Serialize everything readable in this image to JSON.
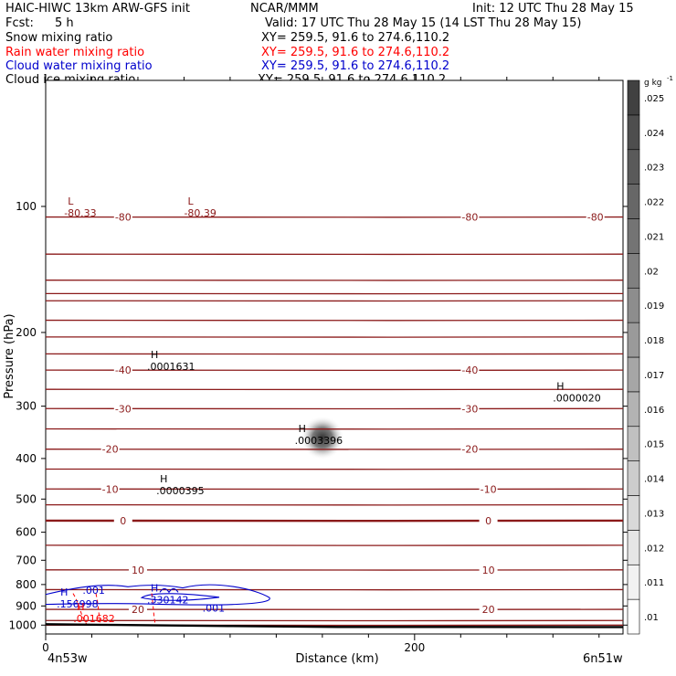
{
  "header": {
    "model_title": "HAIC-HIWC 13km ARW-GFS init",
    "center": "NCAR/MMM",
    "init": "Init: 12 UTC Thu 28 May 15",
    "fcst_label": "Fcst:",
    "fcst_value": "5 h",
    "valid": "Valid: 17 UTC Thu 28 May 15 (14 LST Thu 28 May 15)"
  },
  "fields": [
    {
      "label": "Snow mixing ratio",
      "xy": "XY= 259.5, 91.6 to 274.6,110.2",
      "color": "#000000"
    },
    {
      "label": "Rain water mixing ratio",
      "xy": "XY= 259.5, 91.6 to 274.6,110.2",
      "color": "#ff0000"
    },
    {
      "label": "Cloud water mixing ratio",
      "xy": "XY= 259.5, 91.6 to 274.6,110.2",
      "color": "#0000cc"
    },
    {
      "label": "Cloud ice mixing ratio",
      "xy": "XY= 259.5, 91.6 to 274.6,110.2",
      "color": "#000000"
    }
  ],
  "axes": {
    "ylabel": "Pressure (hPa)",
    "xlabel": "Distance (km)",
    "left_location": "4n53w",
    "right_location": "6n51w"
  },
  "colorbar": {
    "unit": "g kg",
    "unit_exp": "-1",
    "levels": [
      0.01,
      0.011,
      0.012,
      0.013,
      0.014,
      0.015,
      0.016,
      0.017,
      0.018,
      0.019,
      0.02,
      0.021,
      0.022,
      0.023,
      0.024,
      0.025
    ],
    "labels": [
      ".01",
      ".011",
      ".012",
      ".013",
      ".014",
      ".015",
      ".016",
      ".017",
      ".018",
      ".019",
      ".02",
      ".021",
      ".022",
      ".023",
      ".024",
      ".025"
    ]
  },
  "chart_data": {
    "type": "contour",
    "x_range": [
      0,
      313
    ],
    "y_range_hpa": [
      1050,
      50
    ],
    "y_scale": "log",
    "x_ticks": [
      0,
      200
    ],
    "x_tick_labels": [
      "0",
      "200"
    ],
    "y_ticks": [
      100,
      200,
      300,
      400,
      500,
      600,
      700,
      800,
      900,
      1000
    ],
    "y_tick_labels": [
      "100",
      "200",
      "300",
      "400",
      "500",
      "600",
      "700",
      "800",
      "900",
      "1000"
    ],
    "temperature_contours": {
      "color": "#8b1a1a",
      "interval_c": 5,
      "labeled": [
        {
          "value": "-80",
          "p": 106,
          "xs": [
            42,
            230,
            298
          ]
        },
        {
          "value": "-40",
          "p": 246,
          "xs": [
            42,
            230
          ]
        },
        {
          "value": "-30",
          "p": 304,
          "xs": [
            42,
            230
          ]
        },
        {
          "value": "-20",
          "p": 380,
          "xs": [
            35,
            230
          ]
        },
        {
          "value": "-10",
          "p": 473,
          "xs": [
            35,
            240
          ]
        },
        {
          "value": "0",
          "p": 563,
          "xs": [
            42,
            240
          ]
        },
        {
          "value": "10",
          "p": 738,
          "xs": [
            50,
            240
          ]
        },
        {
          "value": "20",
          "p": 917,
          "xs": [
            50,
            240
          ]
        }
      ]
    },
    "annotations": [
      {
        "type": "L",
        "value": "-80.33",
        "x": 10,
        "p": 103,
        "color": "#8b1a1a"
      },
      {
        "type": "L",
        "value": "-80.39",
        "x": 75,
        "p": 103,
        "color": "#8b1a1a"
      },
      {
        "type": "H",
        "value": ".0001631",
        "x": 55,
        "p": 240,
        "color": "#000000"
      },
      {
        "type": "H",
        "value": ".0000020",
        "x": 275,
        "p": 285,
        "color": "#000000"
      },
      {
        "type": "H",
        "value": ".0003396",
        "x": 135,
        "p": 360,
        "color": "#000000"
      },
      {
        "type": "H",
        "value": ".0000395",
        "x": 60,
        "p": 475,
        "color": "#000000"
      },
      {
        "type": "H",
        "value": ".156998",
        "x": 6,
        "p": 885,
        "color": "#0000cc"
      },
      {
        "type": "H",
        "value": ".330142",
        "x": 55,
        "p": 865,
        "color": "#0000cc"
      },
      {
        "type": "H",
        "value": ".001682",
        "x": 15,
        "p": 960,
        "color": "#ff0000"
      }
    ],
    "contour_labels": [
      {
        "value": ".001",
        "x": 20,
        "p": 825,
        "color": "#0000cc"
      },
      {
        "value": ".001",
        "x": 85,
        "p": 910,
        "color": "#0000cc"
      }
    ],
    "snow_max": {
      "x": 150,
      "p": 357,
      "value": 0.0003396
    }
  }
}
